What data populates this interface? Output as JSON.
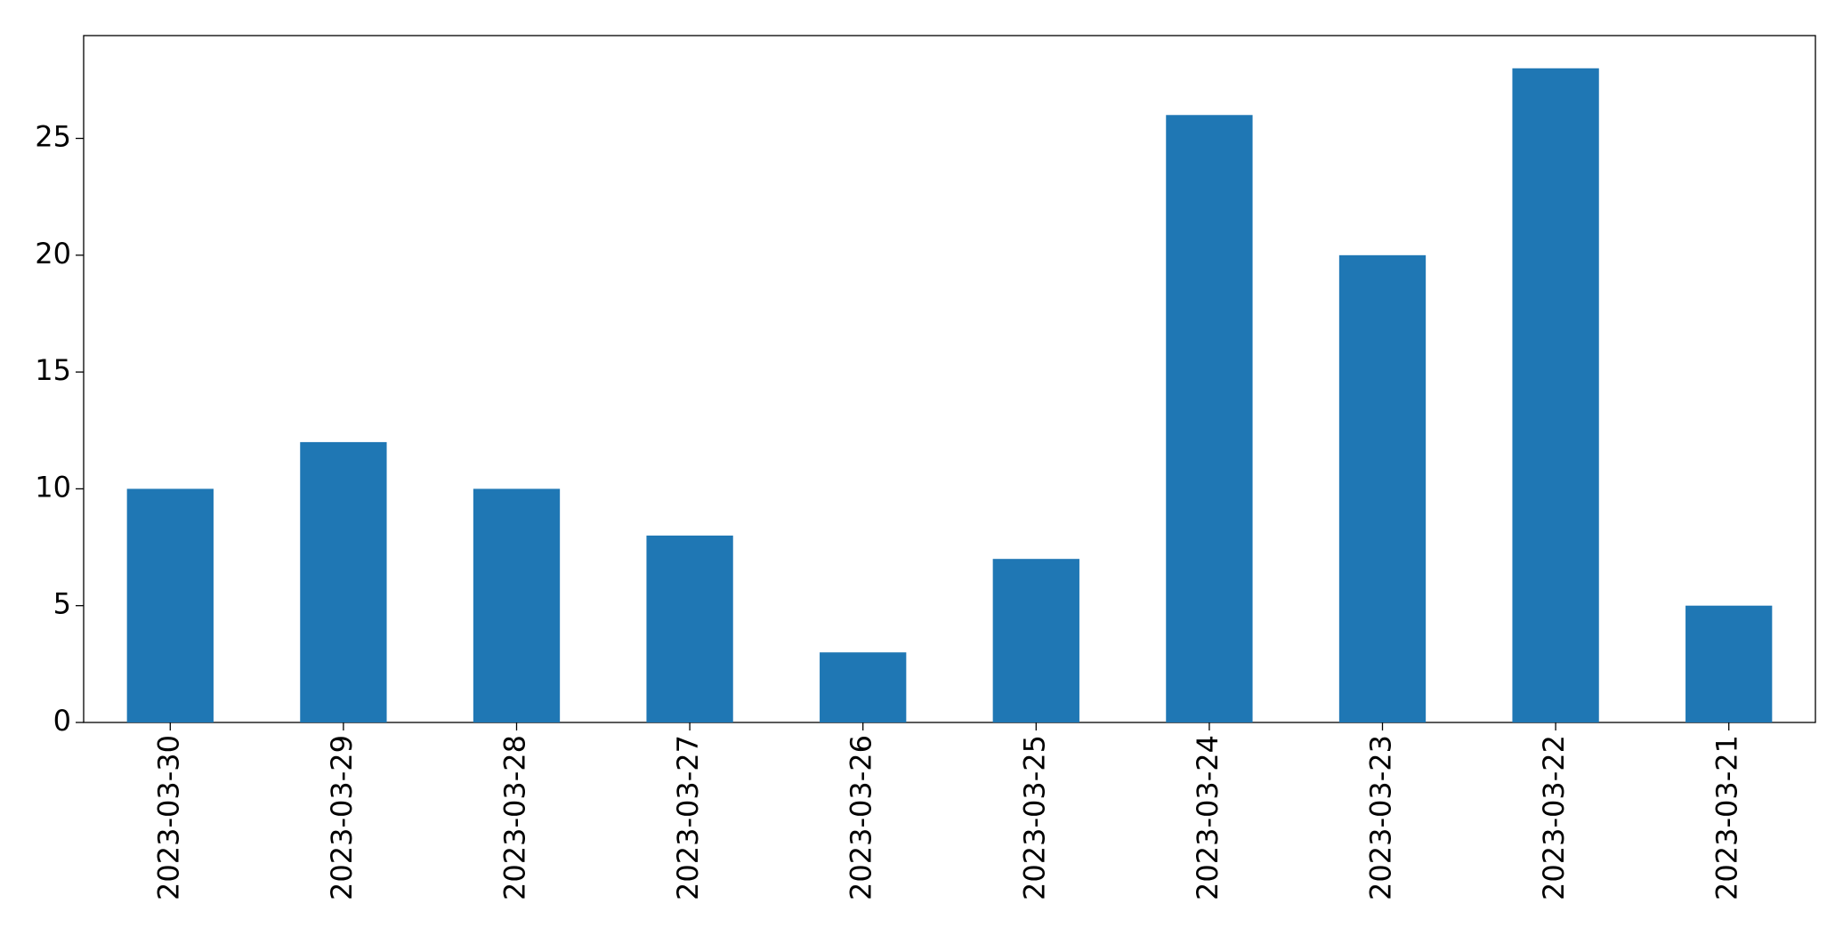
{
  "chart_data": {
    "type": "bar",
    "categories": [
      "2023-03-30",
      "2023-03-29",
      "2023-03-28",
      "2023-03-27",
      "2023-03-26",
      "2023-03-25",
      "2023-03-24",
      "2023-03-23",
      "2023-03-22",
      "2023-03-21"
    ],
    "values": [
      10,
      12,
      10,
      8,
      3,
      7,
      26,
      20,
      28,
      5
    ],
    "color": "#1f77b4",
    "ylim": [
      0,
      29.4
    ],
    "yticks": [
      0,
      5,
      10,
      15,
      20,
      25
    ],
    "grid": false
  }
}
